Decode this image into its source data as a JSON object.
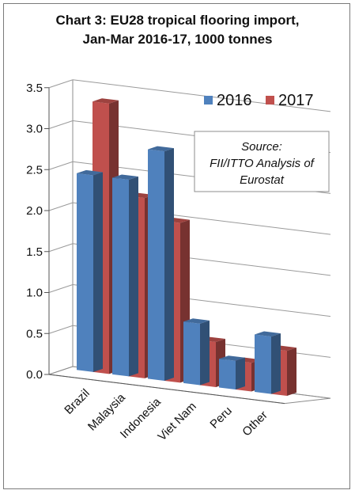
{
  "chart_data": {
    "type": "bar",
    "title_line1": "Chart 3: EU28 tropical flooring import,",
    "title_line2": "Jan-Mar 2016-17, 1000 tonnes",
    "categories": [
      "Brazil",
      "Malaysia",
      "Indonesia",
      "Viet Nam",
      "Peru",
      "Other"
    ],
    "series": [
      {
        "name": "2016",
        "values": [
          2.4,
          2.4,
          2.8,
          0.75,
          0.35,
          0.7
        ],
        "color": "#4f81bd"
      },
      {
        "name": "2017",
        "values": [
          3.3,
          2.2,
          1.95,
          0.55,
          0.35,
          0.55
        ],
        "color": "#c0504d"
      }
    ],
    "ylim": [
      0,
      3.5
    ],
    "y_ticks": [
      "0.0",
      "0.5",
      "1.0",
      "1.5",
      "2.0",
      "2.5",
      "3.0",
      "3.5"
    ],
    "grid": true,
    "legend_position": "top-right",
    "annotation": [
      "Source:",
      "FII/ITTO Analysis of",
      "Eurostat"
    ]
  }
}
